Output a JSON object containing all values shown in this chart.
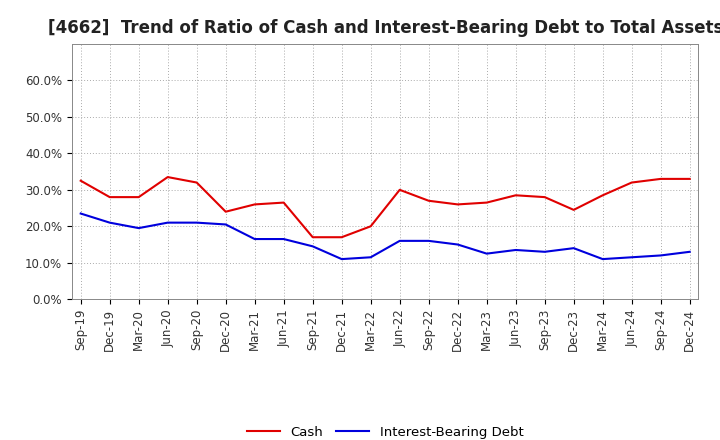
{
  "title": "[4662]  Trend of Ratio of Cash and Interest-Bearing Debt to Total Assets",
  "x_labels": [
    "Sep-19",
    "Dec-19",
    "Mar-20",
    "Jun-20",
    "Sep-20",
    "Dec-20",
    "Mar-21",
    "Jun-21",
    "Sep-21",
    "Dec-21",
    "Mar-22",
    "Jun-22",
    "Sep-22",
    "Dec-22",
    "Mar-23",
    "Jun-23",
    "Sep-23",
    "Dec-23",
    "Mar-24",
    "Jun-24",
    "Sep-24",
    "Dec-24"
  ],
  "cash": [
    32.5,
    28.0,
    28.0,
    33.5,
    32.0,
    24.0,
    26.0,
    26.5,
    17.0,
    17.0,
    20.0,
    30.0,
    27.0,
    26.0,
    26.5,
    28.5,
    28.0,
    24.5,
    28.5,
    32.0,
    33.0,
    33.0
  ],
  "debt": [
    23.5,
    21.0,
    19.5,
    21.0,
    21.0,
    20.5,
    16.5,
    16.5,
    14.5,
    11.0,
    11.5,
    16.0,
    16.0,
    15.0,
    12.5,
    13.5,
    13.0,
    14.0,
    11.0,
    11.5,
    12.0,
    13.0
  ],
  "cash_color": "#e00000",
  "debt_color": "#0000dd",
  "ylim": [
    0,
    70
  ],
  "yticks": [
    0,
    10,
    20,
    30,
    40,
    50,
    60
  ],
  "ytick_labels": [
    "0.0%",
    "10.0%",
    "20.0%",
    "30.0%",
    "40.0%",
    "50.0%",
    "60.0%"
  ],
  "background_color": "#ffffff",
  "plot_bg_color": "#ffffff",
  "grid_color": "#aaaaaa",
  "legend_cash": "Cash",
  "legend_debt": "Interest-Bearing Debt",
  "title_fontsize": 12,
  "axis_fontsize": 8.5
}
